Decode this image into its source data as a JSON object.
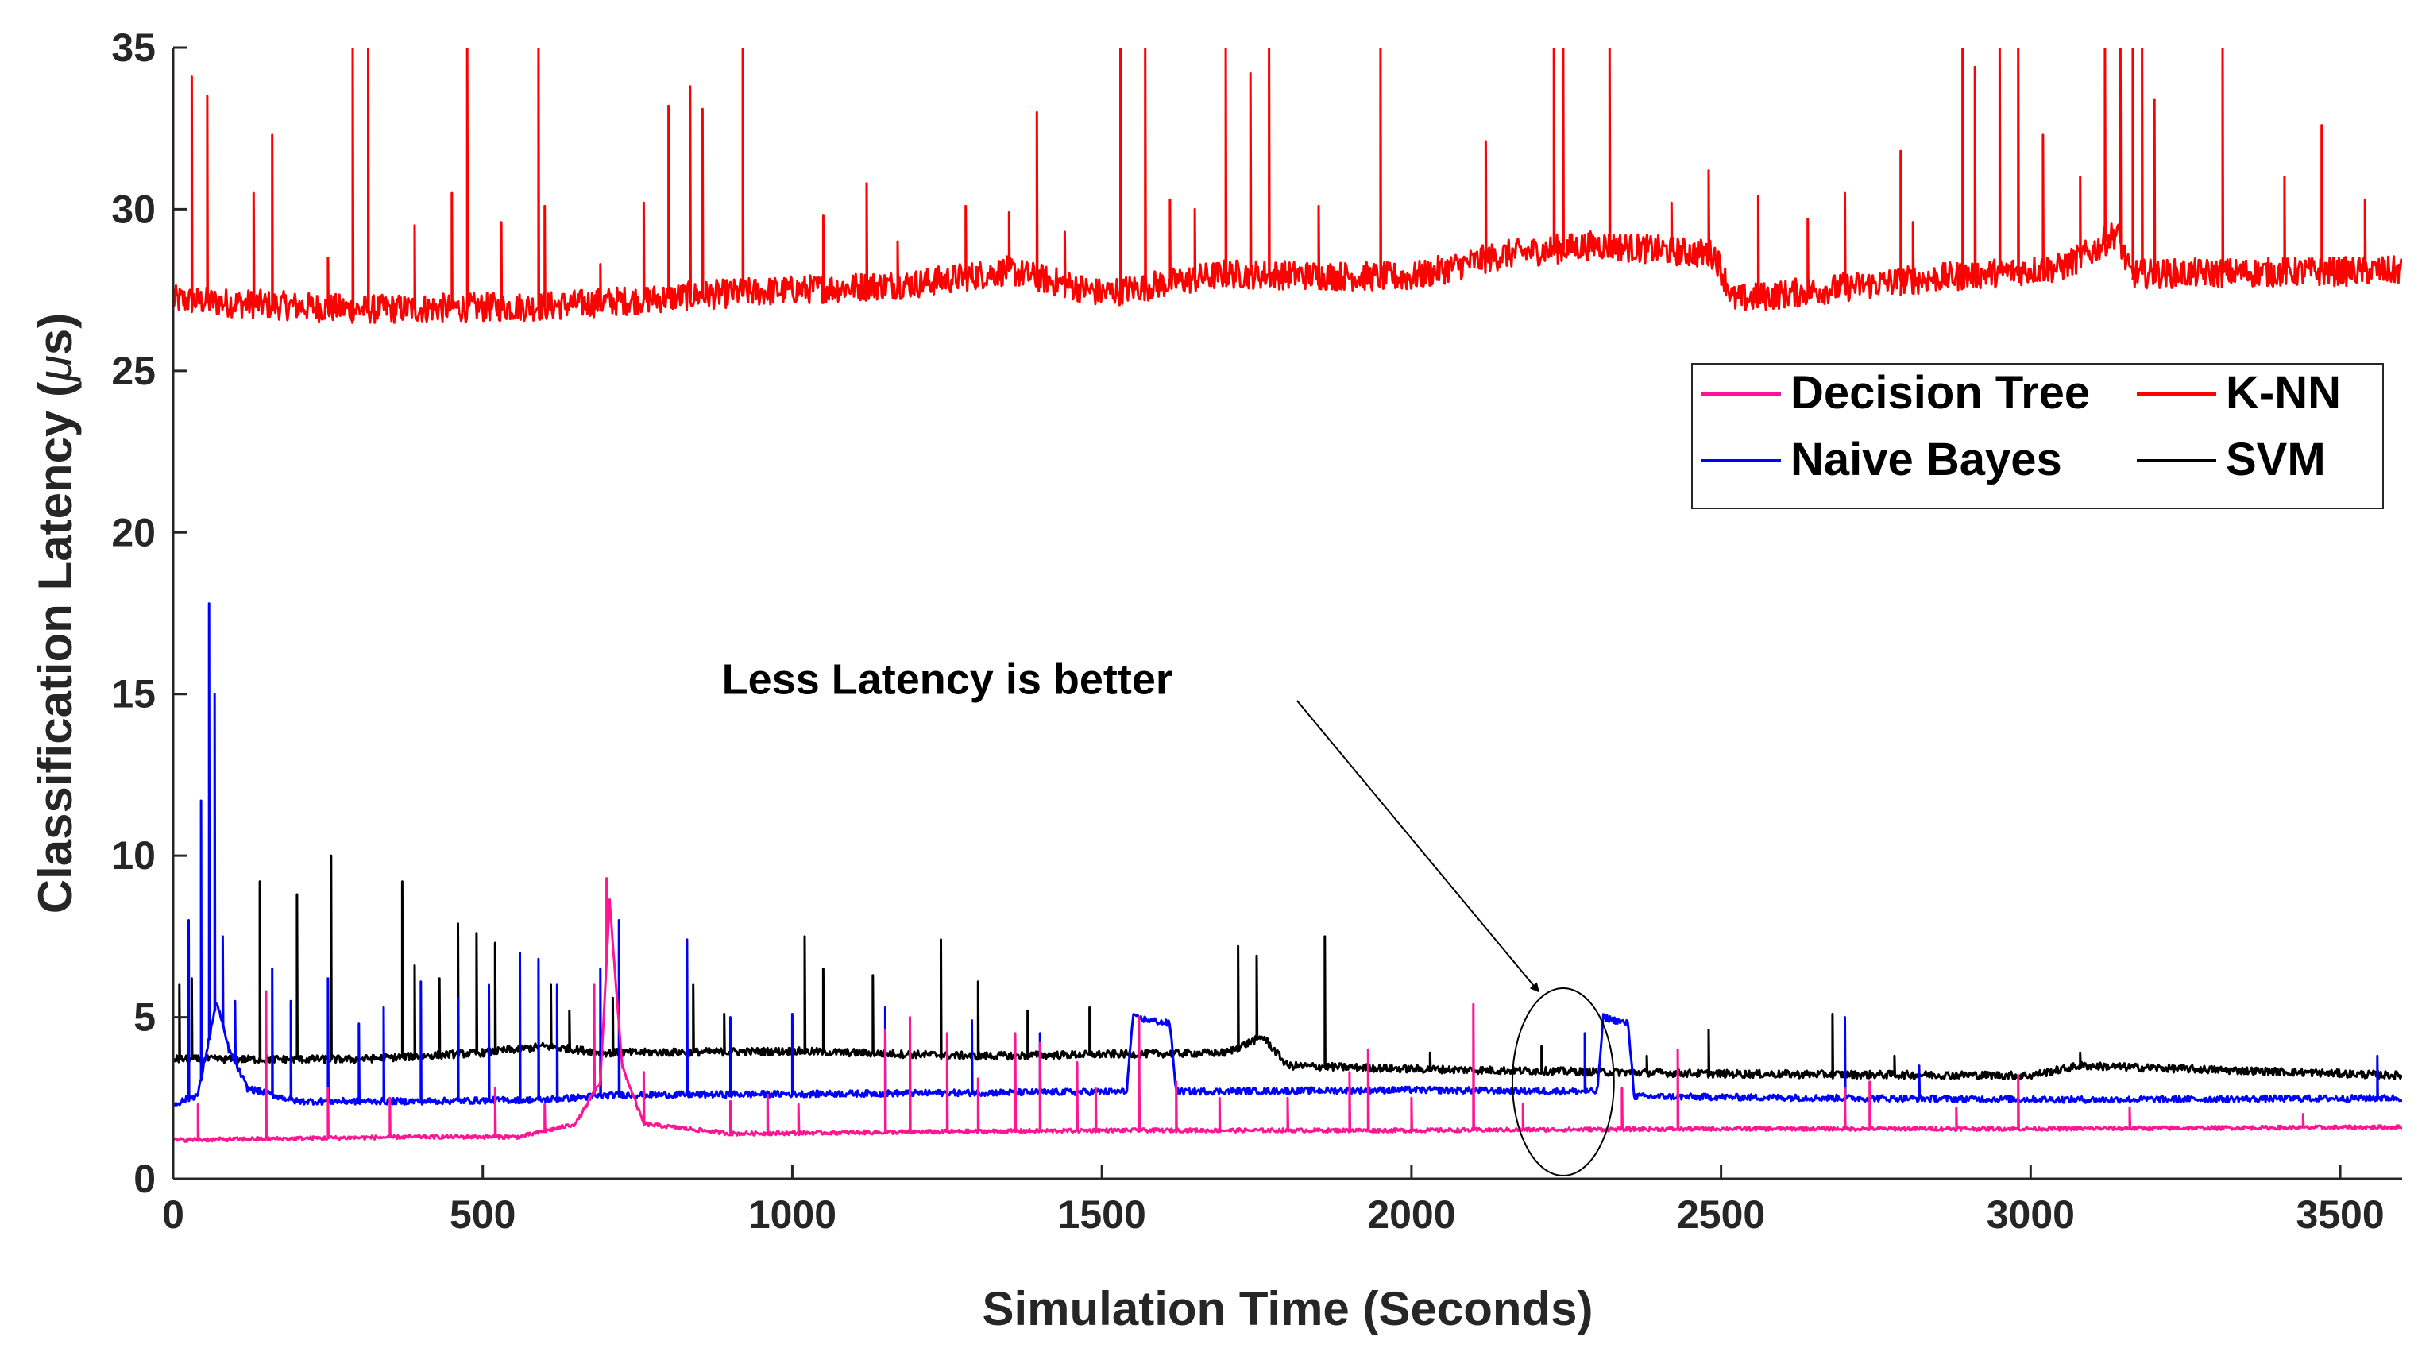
{
  "chart_data": {
    "type": "line",
    "xlabel": "Simulation Time (Seconds)",
    "ylabel_prefix": "Classification Latency (",
    "ylabel_symbol": "μ",
    "ylabel_suffix": "s)",
    "xlim": [
      0,
      3600
    ],
    "ylim": [
      0,
      35
    ],
    "xticks": [
      0,
      500,
      1000,
      1500,
      2000,
      2500,
      3000,
      3500
    ],
    "xtick_labels": [
      "0",
      "500",
      "1000",
      "1500",
      "2000",
      "2500",
      "3000",
      "3500"
    ],
    "yticks": [
      0,
      5,
      10,
      15,
      20,
      25,
      30,
      35
    ],
    "ytick_labels": [
      "0",
      "5",
      "10",
      "15",
      "20",
      "25",
      "30",
      "35"
    ],
    "grid": false,
    "legend_position": "upper-right",
    "series": [
      {
        "name": "K-NN",
        "color": "#ff0000",
        "baseline": [
          [
            0,
            27.2
          ],
          [
            300,
            26.9
          ],
          [
            600,
            27.0
          ],
          [
            900,
            27.4
          ],
          [
            1200,
            27.7
          ],
          [
            1350,
            28.1
          ],
          [
            1500,
            27.4
          ],
          [
            1700,
            28.0
          ],
          [
            2000,
            27.9
          ],
          [
            2150,
            28.6
          ],
          [
            2300,
            28.9
          ],
          [
            2490,
            28.6
          ],
          [
            2520,
            27.2
          ],
          [
            2800,
            27.8
          ],
          [
            3050,
            28.2
          ],
          [
            3100,
            28.7
          ],
          [
            3140,
            29.3
          ],
          [
            3160,
            28.0
          ],
          [
            3600,
            28.1
          ]
        ],
        "noise": 0.45,
        "spikes": [
          [
            30,
            34.1
          ],
          [
            55,
            33.5
          ],
          [
            130,
            30.5
          ],
          [
            160,
            32.3
          ],
          [
            250,
            28.5
          ],
          [
            290,
            35
          ],
          [
            315,
            35
          ],
          [
            390,
            29.5
          ],
          [
            450,
            30.5
          ],
          [
            475,
            35
          ],
          [
            530,
            29.6
          ],
          [
            590,
            35
          ],
          [
            600,
            30.1
          ],
          [
            690,
            28.3
          ],
          [
            760,
            30.2
          ],
          [
            800,
            33.2
          ],
          [
            835,
            33.8
          ],
          [
            855,
            33.1
          ],
          [
            920,
            35
          ],
          [
            1050,
            29.8
          ],
          [
            1120,
            30.8
          ],
          [
            1170,
            29.0
          ],
          [
            1280,
            30.1
          ],
          [
            1350,
            29.9
          ],
          [
            1395,
            33.0
          ],
          [
            1440,
            29.3
          ],
          [
            1530,
            35
          ],
          [
            1570,
            35
          ],
          [
            1610,
            30.3
          ],
          [
            1650,
            30.0
          ],
          [
            1700,
            35
          ],
          [
            1740,
            34.2
          ],
          [
            1770,
            35
          ],
          [
            1850,
            30.1
          ],
          [
            1950,
            35
          ],
          [
            2120,
            32.1
          ],
          [
            2230,
            35
          ],
          [
            2245,
            35
          ],
          [
            2320,
            35
          ],
          [
            2420,
            30.2
          ],
          [
            2480,
            31.2
          ],
          [
            2560,
            30.4
          ],
          [
            2640,
            29.7
          ],
          [
            2700,
            30.5
          ],
          [
            2790,
            31.8
          ],
          [
            2810,
            29.6
          ],
          [
            2890,
            35
          ],
          [
            2910,
            34.4
          ],
          [
            2950,
            35
          ],
          [
            2980,
            35
          ],
          [
            3020,
            32.3
          ],
          [
            3080,
            31.0
          ],
          [
            3120,
            35
          ],
          [
            3145,
            35
          ],
          [
            3165,
            35
          ],
          [
            3180,
            35
          ],
          [
            3200,
            33.4
          ],
          [
            3310,
            35
          ],
          [
            3410,
            31.0
          ],
          [
            3470,
            32.6
          ],
          [
            3540,
            30.3
          ]
        ]
      },
      {
        "name": "SVM",
        "color": "#000000",
        "baseline": [
          [
            0,
            3.7
          ],
          [
            300,
            3.7
          ],
          [
            500,
            3.9
          ],
          [
            600,
            4.1
          ],
          [
            700,
            3.9
          ],
          [
            1000,
            3.95
          ],
          [
            1300,
            3.8
          ],
          [
            1700,
            3.9
          ],
          [
            1760,
            4.4
          ],
          [
            1800,
            3.5
          ],
          [
            2000,
            3.4
          ],
          [
            2500,
            3.25
          ],
          [
            3000,
            3.2
          ],
          [
            3080,
            3.5
          ],
          [
            3600,
            3.2
          ]
        ],
        "noise": 0.12,
        "spikes": [
          [
            10,
            6.0
          ],
          [
            30,
            6.2
          ],
          [
            140,
            9.2
          ],
          [
            200,
            8.8
          ],
          [
            255,
            10.0
          ],
          [
            370,
            9.2
          ],
          [
            390,
            6.6
          ],
          [
            430,
            6.2
          ],
          [
            460,
            7.9
          ],
          [
            490,
            7.6
          ],
          [
            520,
            7.3
          ],
          [
            610,
            6.0
          ],
          [
            640,
            5.2
          ],
          [
            710,
            5.6
          ],
          [
            840,
            6.0
          ],
          [
            890,
            5.1
          ],
          [
            1020,
            7.5
          ],
          [
            1050,
            6.5
          ],
          [
            1130,
            6.3
          ],
          [
            1240,
            7.4
          ],
          [
            1300,
            6.1
          ],
          [
            1380,
            5.2
          ],
          [
            1480,
            5.3
          ],
          [
            1720,
            7.2
          ],
          [
            1750,
            6.9
          ],
          [
            1860,
            7.5
          ],
          [
            2030,
            3.9
          ],
          [
            2210,
            4.1
          ],
          [
            2380,
            3.8
          ],
          [
            2480,
            4.6
          ],
          [
            2680,
            5.1
          ],
          [
            2780,
            3.8
          ],
          [
            3080,
            3.9
          ]
        ]
      },
      {
        "name": "Naive Bayes",
        "color": "#0000ff",
        "baseline": [
          [
            0,
            2.3
          ],
          [
            40,
            2.6
          ],
          [
            70,
            5.5
          ],
          [
            90,
            4.0
          ],
          [
            120,
            2.8
          ],
          [
            200,
            2.4
          ],
          [
            400,
            2.4
          ],
          [
            600,
            2.45
          ],
          [
            720,
            2.6
          ],
          [
            800,
            2.6
          ],
          [
            1200,
            2.65
          ],
          [
            1540,
            2.7
          ],
          [
            1550,
            5.0
          ],
          [
            1610,
            4.8
          ],
          [
            1620,
            2.7
          ],
          [
            2000,
            2.75
          ],
          [
            2300,
            2.7
          ],
          [
            2310,
            5.0
          ],
          [
            2350,
            4.8
          ],
          [
            2360,
            2.55
          ],
          [
            2700,
            2.5
          ],
          [
            3100,
            2.45
          ],
          [
            3600,
            2.5
          ]
        ],
        "noise": 0.1,
        "spikes": [
          [
            25,
            8.0
          ],
          [
            45,
            11.7
          ],
          [
            58,
            17.8
          ],
          [
            67,
            15.0
          ],
          [
            80,
            7.5
          ],
          [
            100,
            5.5
          ],
          [
            160,
            6.5
          ],
          [
            190,
            5.5
          ],
          [
            250,
            6.2
          ],
          [
            300,
            4.8
          ],
          [
            340,
            5.3
          ],
          [
            400,
            6.1
          ],
          [
            460,
            5.6
          ],
          [
            510,
            6.0
          ],
          [
            560,
            7.0
          ],
          [
            590,
            6.8
          ],
          [
            620,
            6.0
          ],
          [
            690,
            6.5
          ],
          [
            720,
            8.0
          ],
          [
            830,
            7.4
          ],
          [
            900,
            5.0
          ],
          [
            1000,
            5.1
          ],
          [
            1150,
            5.3
          ],
          [
            1290,
            4.9
          ],
          [
            1400,
            4.5
          ],
          [
            2280,
            4.5
          ],
          [
            2700,
            5.0
          ],
          [
            2820,
            3.5
          ],
          [
            3560,
            3.8
          ]
        ]
      },
      {
        "name": "Decision Tree",
        "color": "#ff1493",
        "baseline": [
          [
            0,
            1.2
          ],
          [
            200,
            1.25
          ],
          [
            400,
            1.3
          ],
          [
            560,
            1.3
          ],
          [
            650,
            1.7
          ],
          [
            690,
            3.0
          ],
          [
            705,
            8.6
          ],
          [
            725,
            3.5
          ],
          [
            760,
            1.7
          ],
          [
            900,
            1.4
          ],
          [
            1200,
            1.45
          ],
          [
            1500,
            1.5
          ],
          [
            2000,
            1.5
          ],
          [
            2500,
            1.55
          ],
          [
            3000,
            1.55
          ],
          [
            3600,
            1.6
          ]
        ],
        "noise": 0.06,
        "spikes": [
          [
            40,
            2.3
          ],
          [
            150,
            5.8
          ],
          [
            250,
            2.8
          ],
          [
            350,
            2.5
          ],
          [
            520,
            2.8
          ],
          [
            600,
            2.3
          ],
          [
            680,
            6.0
          ],
          [
            700,
            9.3
          ],
          [
            760,
            3.3
          ],
          [
            900,
            2.4
          ],
          [
            960,
            2.6
          ],
          [
            1010,
            2.3
          ],
          [
            1150,
            4.6
          ],
          [
            1190,
            5.0
          ],
          [
            1250,
            4.5
          ],
          [
            1300,
            3.1
          ],
          [
            1360,
            4.5
          ],
          [
            1400,
            4.2
          ],
          [
            1460,
            3.6
          ],
          [
            1490,
            2.8
          ],
          [
            1560,
            5.0
          ],
          [
            1620,
            3.0
          ],
          [
            1690,
            2.5
          ],
          [
            1800,
            2.5
          ],
          [
            1900,
            3.3
          ],
          [
            1930,
            4.0
          ],
          [
            2000,
            2.5
          ],
          [
            2100,
            5.4
          ],
          [
            2180,
            2.3
          ],
          [
            2340,
            2.8
          ],
          [
            2430,
            4.0
          ],
          [
            2700,
            2.8
          ],
          [
            2740,
            3.0
          ],
          [
            2880,
            2.2
          ],
          [
            2980,
            3.2
          ],
          [
            3160,
            2.2
          ],
          [
            3440,
            2.0
          ]
        ]
      }
    ],
    "legend": [
      {
        "label": "Decision Tree",
        "color": "#ff1493"
      },
      {
        "label": "K-NN",
        "color": "#ff0000"
      },
      {
        "label": "Naive Bayes",
        "color": "#0000ff"
      },
      {
        "label": "SVM",
        "color": "#000000"
      }
    ],
    "annotation": {
      "text": "Less Latency is better",
      "text_anchor": [
        1250,
        15
      ],
      "arrow_from": [
        1815,
        14.8
      ],
      "arrow_to": [
        2205,
        5.8
      ],
      "ellipse_center": [
        2245,
        3.0
      ],
      "ellipse_rx": 82,
      "ellipse_ry": 2.9
    }
  }
}
